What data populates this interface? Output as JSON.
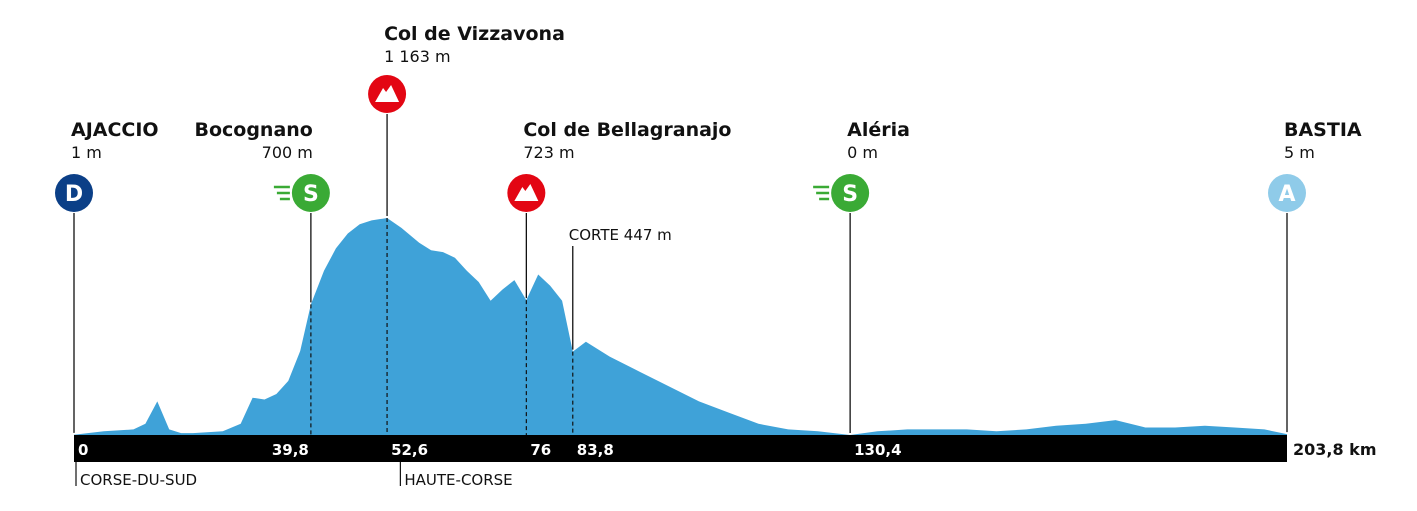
{
  "chart_data": {
    "type": "area",
    "title": "",
    "xlabel": "",
    "ylabel": "",
    "x_unit": "km",
    "xlim": [
      0,
      203.8
    ],
    "colors": {
      "profile": "#3fa2d8",
      "axis_bar": "#000000",
      "start": "#0b3f87",
      "sprint": "#3aaa35",
      "climb": "#e30613",
      "finish": "#8fcbe9"
    },
    "profile": {
      "x": [
        0,
        5,
        10,
        12,
        14,
        16,
        18,
        20,
        25,
        28,
        30,
        32,
        34,
        36,
        38,
        39.8,
        42,
        44,
        46,
        48,
        50,
        52.6,
        55,
        58,
        60,
        62,
        64,
        66,
        68,
        70,
        72,
        74,
        76,
        78,
        80,
        82,
        83.8,
        86,
        90,
        95,
        100,
        105,
        110,
        115,
        120,
        125,
        130.4,
        135,
        140,
        145,
        150,
        155,
        160,
        165,
        170,
        175,
        180,
        185,
        190,
        195,
        200,
        203.8
      ],
      "y": [
        1,
        20,
        30,
        60,
        180,
        30,
        10,
        10,
        20,
        60,
        200,
        190,
        220,
        290,
        450,
        700,
        880,
        1000,
        1080,
        1130,
        1150,
        1163,
        1110,
        1030,
        990,
        980,
        950,
        880,
        820,
        720,
        780,
        830,
        723,
        860,
        800,
        720,
        447,
        500,
        420,
        340,
        260,
        180,
        120,
        60,
        30,
        20,
        0,
        20,
        30,
        30,
        30,
        20,
        30,
        50,
        60,
        80,
        40,
        40,
        50,
        40,
        30,
        5
      ]
    },
    "points": [
      {
        "km": 0,
        "km_label": "0",
        "icon": "start-icon",
        "icon_letter": "D",
        "name": "AJACCIO",
        "altitude": "1 m"
      },
      {
        "km": 39.8,
        "km_label": "39,8",
        "icon": "sprint-icon",
        "icon_letter": "S",
        "name": "Bocognano",
        "altitude": "700 m"
      },
      {
        "km": 52.6,
        "km_label": "52,6",
        "icon": "climb-icon",
        "name": "Col de Vizzavona",
        "altitude": "1 163 m"
      },
      {
        "km": 76,
        "km_label": "76",
        "icon": "climb-icon",
        "name": "Col de Bellagranajo",
        "altitude": "723 m"
      },
      {
        "km": 83.8,
        "km_label": "83,8",
        "icon": "",
        "name": "CORTE 447 m",
        "altitude": ""
      },
      {
        "km": 130.4,
        "km_label": "130,4",
        "icon": "sprint-icon",
        "icon_letter": "S",
        "name": "Aléria",
        "altitude": "0 m"
      },
      {
        "km": 203.8,
        "km_label": "",
        "icon": "finish-icon",
        "icon_letter": "A",
        "name": "BASTIA",
        "altitude": "5 m"
      }
    ],
    "end_label": "203,8 km",
    "regions": [
      {
        "km": 0,
        "name": "CORSE-DU-SUD"
      },
      {
        "km": 54.5,
        "name": "HAUTE-CORSE"
      }
    ]
  }
}
